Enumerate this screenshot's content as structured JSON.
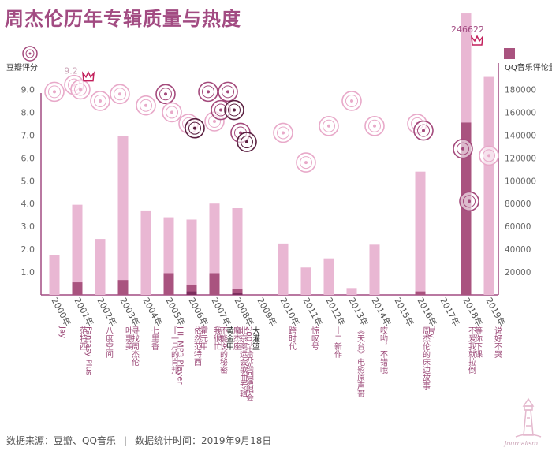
{
  "title": "周杰伦历年专辑质量与热度",
  "footer": {
    "source": "数据来源：豆瓣、QQ音乐",
    "separator": "|",
    "time": "数据统计时间：2019年9月18日"
  },
  "logo_text": "Journalism",
  "colors": {
    "title": "#a24b82",
    "bar_total": "#e9b7d3",
    "bar_highlight": "#a9537f",
    "bar_dark": "#7d2e5e",
    "disc_light": "#e8a9c9",
    "disc_mid": "#a44a7c",
    "disc_dark": "#5a1f40",
    "axis": "#a24b82"
  },
  "chart_data": {
    "type": "bar",
    "left_axis_label": "豆瓣评分",
    "right_axis_label": "QQ音乐评论量",
    "left_ticks": [
      "1.0",
      "2.0",
      "3.0",
      "4.0",
      "5.0",
      "6.0",
      "7.0",
      "8.0",
      "9.0"
    ],
    "right_ticks": [
      "20000",
      "40000",
      "60000",
      "80000",
      "100000",
      "120000",
      "140000",
      "160000",
      "180000"
    ],
    "left_range": [
      0,
      9.5
    ],
    "right_range": [
      0,
      190000
    ],
    "max_label": "246622",
    "max_score_label": "9.2",
    "years": [
      "2000年",
      "2001年",
      "2002年",
      "2003年",
      "2004年",
      "2005年",
      "2006年",
      "2007年",
      "2008年",
      "2009年",
      "2010年",
      "2011年",
      "2012年",
      "2013年",
      "2014年",
      "2015年",
      "2016年",
      "2017年",
      "2018年",
      "2019年"
    ],
    "bars": [
      {
        "year": "2000年",
        "name": "Jay",
        "comments": 35000,
        "highlight": 0
      },
      {
        "year": "2001年",
        "name": "范特西",
        "comments": 79000,
        "highlight": 11000
      },
      {
        "year": "2001年",
        "name": "Fantasy Plus",
        "comments": null,
        "highlight": 0
      },
      {
        "year": "2002年",
        "name": "八度空间",
        "comments": 49000,
        "highlight": 0
      },
      {
        "year": "2003年",
        "name": "叶惠美",
        "comments": 139000,
        "highlight": 13000
      },
      {
        "year": "2003年",
        "name": "寻找周杰伦",
        "comments": null,
        "highlight": 0
      },
      {
        "year": "2004年",
        "name": "七里香",
        "comments": 74000,
        "highlight": 0
      },
      {
        "year": "2005年",
        "name": "十一月的肖邦",
        "comments": 68000,
        "highlight": 19000
      },
      {
        "year": "2005年",
        "name": "J III MP3 Player",
        "comments": null,
        "highlight": 0
      },
      {
        "year": "2006年",
        "name": "依然范特西",
        "comments": 66000,
        "highlight": 9000
      },
      {
        "year": "2006年",
        "name": "霍元甲",
        "comments": null,
        "highlight": 3000
      },
      {
        "year": "2007年",
        "name": "我很忙",
        "comments": 80000,
        "highlight": 19000
      },
      {
        "year": "2007年",
        "name": "不能说的秘密",
        "comments": null,
        "highlight": 0
      },
      {
        "year": "2007年",
        "name": "黄金甲",
        "comments": null,
        "highlight": 0
      },
      {
        "year": "2008年",
        "name": "魔杰座",
        "comments": 76000,
        "highlight": 5000
      },
      {
        "year": "2008年",
        "name": "北京奥运会歌曲专辑",
        "comments": null,
        "highlight": 0
      },
      {
        "year": "2008年",
        "name": "2007世界巡回演唱会",
        "comments": null,
        "highlight": 0
      },
      {
        "year": "2008年",
        "name": "大灌篮",
        "comments": null,
        "highlight": 2000
      },
      {
        "year": "2010年",
        "name": "跨时代",
        "comments": 45000,
        "highlight": 0
      },
      {
        "year": "2011年",
        "name": "惊叹号",
        "comments": 24000,
        "highlight": 0
      },
      {
        "year": "2012年",
        "name": "十二新作",
        "comments": 32000,
        "highlight": 0
      },
      {
        "year": "2013年",
        "name": "《天台》电影原声带",
        "comments": 6000,
        "highlight": 0
      },
      {
        "year": "2014年",
        "name": "哎哟，不错哦",
        "comments": 44000,
        "highlight": 0
      },
      {
        "year": "2016年",
        "name": "周杰伦的床边故事",
        "comments": 108000,
        "highlight": 3000
      },
      {
        "year": "2016年",
        "name": "Try",
        "comments": null,
        "highlight": 0
      },
      {
        "year": "2018年",
        "name": "不爱我就拉倒",
        "comments": 246622,
        "highlight": 151000
      },
      {
        "year": "2018年",
        "name": "等你下课",
        "comments": null,
        "highlight": 0
      },
      {
        "year": "2019年",
        "name": "说好不哭",
        "comments": 191000,
        "highlight": 0
      }
    ],
    "scores": [
      {
        "name": "Jay",
        "score": 8.9,
        "tone": "light"
      },
      {
        "name": "范特西",
        "score": 9.2,
        "tone": "light"
      },
      {
        "name": "Fantasy Plus",
        "score": 9.0,
        "tone": "light"
      },
      {
        "name": "八度空间",
        "score": 8.5,
        "tone": "light"
      },
      {
        "name": "叶惠美",
        "score": 8.8,
        "tone": "light"
      },
      {
        "name": "七里香",
        "score": 8.3,
        "tone": "light"
      },
      {
        "name": "十一月的肖邦",
        "score": 8.8,
        "tone": "mid"
      },
      {
        "name": "J III MP3 Player",
        "score": 8.0,
        "tone": "light"
      },
      {
        "name": "依然范特西",
        "score": 7.5,
        "tone": "light"
      },
      {
        "name": "霍元甲",
        "score": 7.3,
        "tone": "dark"
      },
      {
        "name": "我很忙",
        "score": 8.9,
        "tone": "mid"
      },
      {
        "name": "不能说的秘密",
        "score": 7.6,
        "tone": "light"
      },
      {
        "name": "黄金甲",
        "score": 8.1,
        "tone": "mid"
      },
      {
        "name": "魔杰座",
        "score": 8.9,
        "tone": "mid"
      },
      {
        "name": "北京奥运会歌曲专辑",
        "score": 8.1,
        "tone": "dark"
      },
      {
        "name": "2007世界巡回演唱会",
        "score": 7.1,
        "tone": "mid"
      },
      {
        "name": "大灌篮",
        "score": 6.7,
        "tone": "dark"
      },
      {
        "name": "跨时代",
        "score": 7.1,
        "tone": "light"
      },
      {
        "name": "惊叹号",
        "score": 5.8,
        "tone": "light"
      },
      {
        "name": "十二新作",
        "score": 7.4,
        "tone": "light"
      },
      {
        "name": "《天台》电影原声带",
        "score": 8.5,
        "tone": "light"
      },
      {
        "name": "哎哟，不错哦",
        "score": 7.4,
        "tone": "light"
      },
      {
        "name": "周杰伦的床边故事",
        "score": 7.5,
        "tone": "light"
      },
      {
        "name": "Try",
        "score": 7.2,
        "tone": "mid"
      },
      {
        "name": "不爱我就拉倒",
        "score": 6.4,
        "tone": "mid"
      },
      {
        "name": "等你下课",
        "score": 4.1,
        "tone": "mid"
      },
      {
        "name": "说好不哭",
        "score": 6.1,
        "tone": "light"
      }
    ]
  }
}
